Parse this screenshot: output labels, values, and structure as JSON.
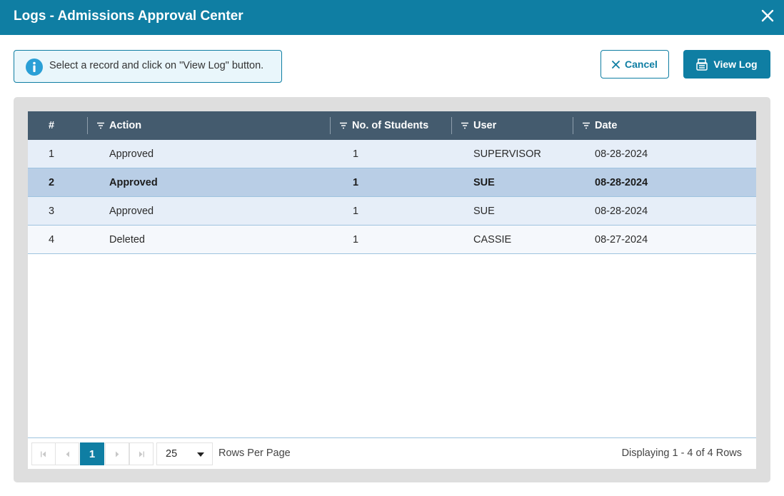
{
  "window": {
    "title": "Logs - Admissions Approval Center"
  },
  "info": {
    "text": "Select a record and click on \"View Log\" button."
  },
  "toolbar": {
    "cancel_label": "Cancel",
    "view_log_label": "View Log"
  },
  "table": {
    "columns": [
      "#",
      "Action",
      "No. of Students",
      "User",
      "Date"
    ],
    "rows": [
      {
        "num": "1",
        "action": "Approved",
        "students": "1",
        "user": "SUPERVISOR",
        "date": "08-28-2024"
      },
      {
        "num": "2",
        "action": "Approved",
        "students": "1",
        "user": "SUE",
        "date": "08-28-2024"
      },
      {
        "num": "3",
        "action": "Approved",
        "students": "1",
        "user": "SUE",
        "date": "08-28-2024"
      },
      {
        "num": "4",
        "action": "Deleted",
        "students": "1",
        "user": "CASSIE",
        "date": "08-27-2024"
      }
    ],
    "selected_row": 2
  },
  "pager": {
    "current_page": "1",
    "page_size": "25",
    "rows_per_page_label": "Rows Per Page",
    "display_text": "Displaying 1 - 4 of 4 Rows"
  },
  "icons": {
    "close": "close-icon",
    "info": "info-icon",
    "cancel": "x-icon",
    "view_log": "log-document-icon",
    "filter": "filter-icon"
  },
  "colors": {
    "accent": "#0f7ea3",
    "header": "#445b6e",
    "selected_row": "#b9cee6"
  }
}
